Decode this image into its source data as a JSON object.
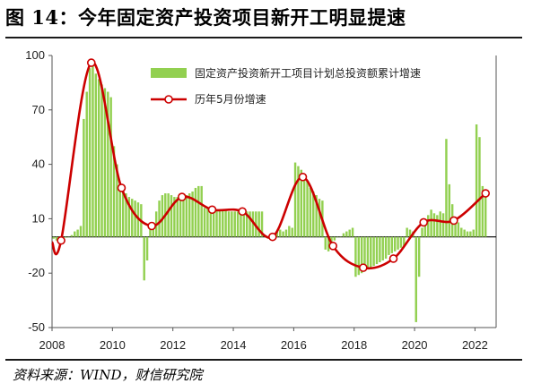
{
  "title": "图 14：今年固定资产投资项目新开工明显提速",
  "source": "资料来源：WIND，财信研究院",
  "colors": {
    "bar": "#92d050",
    "line": "#cc0000",
    "axis": "#555555"
  },
  "chart_data": {
    "type": "bar+line",
    "ylim": [
      -50,
      100
    ],
    "yticks": [
      -50,
      -20,
      10,
      40,
      70,
      100
    ],
    "xlim": [
      2008,
      2022.7
    ],
    "xticks": [
      2008,
      2010,
      2012,
      2014,
      2016,
      2018,
      2020,
      2022
    ],
    "legend": [
      "固定资产投资新开工项目计划总投资额累计增速",
      "历年5月份增速"
    ],
    "legend_position": "top-right",
    "series": [
      {
        "name": "固定资产投资新开工项目计划总投资额累计增速",
        "type": "bar",
        "points": [
          [
            2008.05,
            -1
          ],
          [
            2008.15,
            -2
          ],
          [
            2008.25,
            -1
          ],
          [
            2008.35,
            -1
          ],
          [
            2008.45,
            -0.5
          ],
          [
            2008.55,
            0
          ],
          [
            2008.65,
            1
          ],
          [
            2008.75,
            3
          ],
          [
            2008.85,
            4
          ],
          [
            2008.95,
            6
          ],
          [
            2009.05,
            65
          ],
          [
            2009.15,
            80
          ],
          [
            2009.25,
            93
          ],
          [
            2009.35,
            95
          ],
          [
            2009.45,
            90
          ],
          [
            2009.55,
            87
          ],
          [
            2009.65,
            84
          ],
          [
            2009.75,
            82
          ],
          [
            2009.85,
            80
          ],
          [
            2009.95,
            77
          ],
          [
            2010.05,
            50
          ],
          [
            2010.15,
            40
          ],
          [
            2010.25,
            30
          ],
          [
            2010.35,
            26
          ],
          [
            2010.45,
            24
          ],
          [
            2010.55,
            22
          ],
          [
            2010.65,
            21
          ],
          [
            2010.75,
            20
          ],
          [
            2010.85,
            19
          ],
          [
            2010.95,
            18
          ],
          [
            2011.05,
            -24
          ],
          [
            2011.15,
            -13
          ],
          [
            2011.25,
            6
          ],
          [
            2011.35,
            8
          ],
          [
            2011.45,
            14
          ],
          [
            2011.55,
            20
          ],
          [
            2011.65,
            23
          ],
          [
            2011.75,
            24
          ],
          [
            2011.85,
            24
          ],
          [
            2011.95,
            23
          ],
          [
            2012.05,
            22
          ],
          [
            2012.15,
            22
          ],
          [
            2012.25,
            22
          ],
          [
            2012.35,
            22
          ],
          [
            2012.45,
            23
          ],
          [
            2012.55,
            24
          ],
          [
            2012.65,
            25
          ],
          [
            2012.75,
            27
          ],
          [
            2012.85,
            28
          ],
          [
            2012.95,
            28
          ],
          [
            2013.05,
            16
          ],
          [
            2013.15,
            16
          ],
          [
            2013.25,
            16
          ],
          [
            2013.35,
            16
          ],
          [
            2013.45,
            15
          ],
          [
            2013.55,
            15
          ],
          [
            2013.65,
            15
          ],
          [
            2013.75,
            15
          ],
          [
            2013.85,
            14
          ],
          [
            2013.95,
            14
          ],
          [
            2014.05,
            14
          ],
          [
            2014.15,
            14
          ],
          [
            2014.25,
            14
          ],
          [
            2014.35,
            14
          ],
          [
            2014.45,
            14
          ],
          [
            2014.55,
            14
          ],
          [
            2014.65,
            14
          ],
          [
            2014.75,
            14
          ],
          [
            2014.85,
            14
          ],
          [
            2014.95,
            14
          ],
          [
            2015.05,
            1
          ],
          [
            2015.15,
            -1
          ],
          [
            2015.25,
            1
          ],
          [
            2015.35,
            2
          ],
          [
            2015.45,
            3
          ],
          [
            2015.55,
            4
          ],
          [
            2015.65,
            3
          ],
          [
            2015.75,
            4
          ],
          [
            2015.85,
            6
          ],
          [
            2015.95,
            5
          ],
          [
            2016.05,
            41
          ],
          [
            2016.15,
            39
          ],
          [
            2016.25,
            37
          ],
          [
            2016.35,
            34
          ],
          [
            2016.45,
            31
          ],
          [
            2016.55,
            27
          ],
          [
            2016.65,
            25
          ],
          [
            2016.75,
            23
          ],
          [
            2016.85,
            21
          ],
          [
            2016.95,
            20
          ],
          [
            2017.05,
            -7
          ],
          [
            2017.15,
            -8
          ],
          [
            2017.25,
            -4
          ],
          [
            2017.35,
            -2
          ],
          [
            2017.45,
            0
          ],
          [
            2017.55,
            0
          ],
          [
            2017.65,
            2
          ],
          [
            2017.75,
            3
          ],
          [
            2017.85,
            4
          ],
          [
            2017.95,
            5
          ],
          [
            2018.05,
            -22
          ],
          [
            2018.15,
            -21
          ],
          [
            2018.25,
            -20
          ],
          [
            2018.35,
            -19
          ],
          [
            2018.45,
            -18
          ],
          [
            2018.55,
            -17
          ],
          [
            2018.65,
            -16
          ],
          [
            2018.75,
            -15
          ],
          [
            2018.85,
            -14
          ],
          [
            2018.95,
            -13
          ],
          [
            2019.05,
            -12
          ],
          [
            2019.15,
            -10
          ],
          [
            2019.25,
            -9
          ],
          [
            2019.35,
            -8
          ],
          [
            2019.45,
            -7
          ],
          [
            2019.55,
            -6
          ],
          [
            2019.65,
            -5
          ],
          [
            2019.75,
            5
          ],
          [
            2019.85,
            4
          ],
          [
            2019.95,
            3
          ],
          [
            2020.05,
            -47
          ],
          [
            2020.15,
            -22
          ],
          [
            2020.25,
            5
          ],
          [
            2020.35,
            9
          ],
          [
            2020.45,
            12
          ],
          [
            2020.55,
            15
          ],
          [
            2020.65,
            13
          ],
          [
            2020.75,
            12
          ],
          [
            2020.85,
            14
          ],
          [
            2020.95,
            13
          ],
          [
            2021.05,
            54
          ],
          [
            2021.15,
            29
          ],
          [
            2021.25,
            18
          ],
          [
            2021.35,
            11
          ],
          [
            2021.45,
            8
          ],
          [
            2021.55,
            5
          ],
          [
            2021.65,
            4
          ],
          [
            2021.75,
            3
          ],
          [
            2021.85,
            3
          ],
          [
            2021.95,
            4
          ],
          [
            2022.05,
            62
          ],
          [
            2022.15,
            55
          ],
          [
            2022.25,
            28
          ],
          [
            2022.35,
            24
          ]
        ]
      },
      {
        "name": "历年5月份增速",
        "type": "line",
        "points": [
          [
            2008.0,
            -3
          ],
          [
            2008.3,
            -2
          ],
          [
            2009.3,
            96
          ],
          [
            2010.3,
            27
          ],
          [
            2011.3,
            6
          ],
          [
            2012.3,
            22
          ],
          [
            2013.3,
            15
          ],
          [
            2014.3,
            14
          ],
          [
            2015.3,
            0
          ],
          [
            2016.3,
            33
          ],
          [
            2017.3,
            -5
          ],
          [
            2018.3,
            -17
          ],
          [
            2019.3,
            -12
          ],
          [
            2020.3,
            8
          ],
          [
            2021.3,
            9
          ],
          [
            2022.35,
            24
          ]
        ],
        "marker_start_index": 1
      }
    ]
  }
}
